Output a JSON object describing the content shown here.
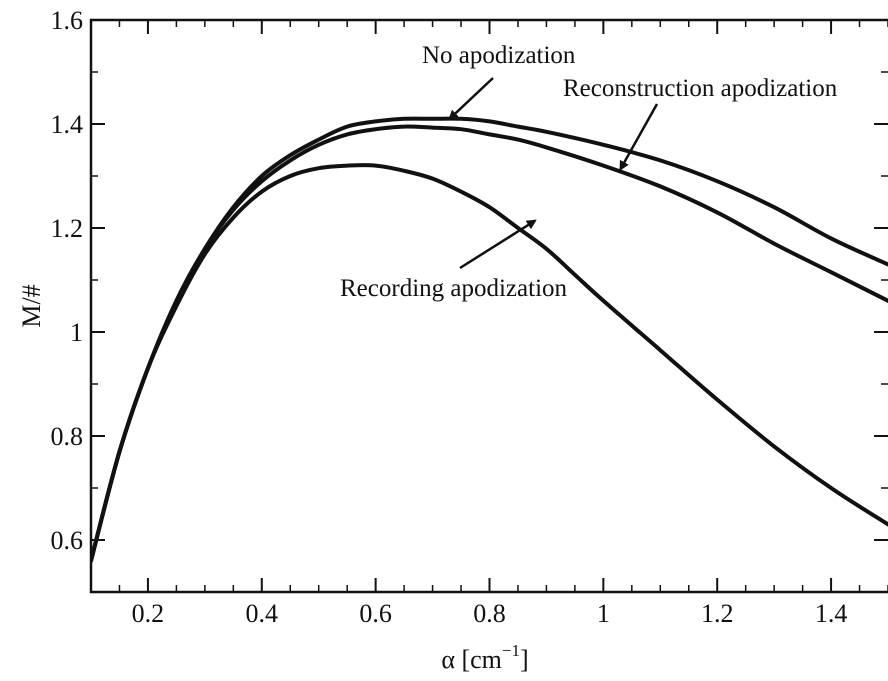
{
  "chart_data": {
    "type": "line",
    "title": "",
    "xlabel": "α [cm",
    "xlabel_sup": "−1",
    "xlabel_close": "]",
    "ylabel": "M/#",
    "xlim": [
      0.1,
      1.5
    ],
    "ylim": [
      0.5,
      1.6
    ],
    "x_ticks": [
      0.2,
      0.4,
      0.6,
      0.8,
      1.0,
      1.2,
      1.4
    ],
    "x_tick_labels": [
      "0.2",
      "0.4",
      "0.6",
      "0.8",
      "1",
      "1.2",
      "1.4"
    ],
    "y_ticks": [
      0.6,
      0.8,
      1.0,
      1.2,
      1.4,
      1.6
    ],
    "y_tick_labels": [
      "0.6",
      "0.8",
      "1",
      "1.2",
      "1.4",
      "1.6"
    ],
    "grid": false,
    "legend": "none",
    "series": [
      {
        "name": "No apodization",
        "x": [
          0.1,
          0.15,
          0.2,
          0.25,
          0.3,
          0.35,
          0.4,
          0.45,
          0.5,
          0.55,
          0.6,
          0.65,
          0.7,
          0.75,
          0.8,
          0.85,
          0.9,
          1.0,
          1.1,
          1.2,
          1.3,
          1.4,
          1.5
        ],
        "y": [
          0.56,
          0.77,
          0.93,
          1.06,
          1.16,
          1.24,
          1.3,
          1.34,
          1.37,
          1.395,
          1.405,
          1.41,
          1.41,
          1.41,
          1.405,
          1.395,
          1.385,
          1.36,
          1.33,
          1.29,
          1.24,
          1.18,
          1.13
        ]
      },
      {
        "name": "Reconstruction apodization",
        "x": [
          0.1,
          0.15,
          0.2,
          0.25,
          0.3,
          0.35,
          0.4,
          0.45,
          0.5,
          0.55,
          0.6,
          0.65,
          0.7,
          0.75,
          0.8,
          0.85,
          0.9,
          1.0,
          1.1,
          1.2,
          1.3,
          1.4,
          1.5
        ],
        "y": [
          0.56,
          0.77,
          0.93,
          1.06,
          1.16,
          1.235,
          1.29,
          1.33,
          1.36,
          1.38,
          1.39,
          1.395,
          1.393,
          1.39,
          1.38,
          1.37,
          1.355,
          1.32,
          1.28,
          1.23,
          1.17,
          1.115,
          1.06
        ]
      },
      {
        "name": "Recording apodization",
        "x": [
          0.1,
          0.15,
          0.2,
          0.25,
          0.3,
          0.35,
          0.4,
          0.45,
          0.5,
          0.55,
          0.6,
          0.65,
          0.7,
          0.75,
          0.8,
          0.85,
          0.9,
          0.95,
          1.0,
          1.1,
          1.2,
          1.3,
          1.4,
          1.5
        ],
        "y": [
          0.56,
          0.77,
          0.93,
          1.05,
          1.15,
          1.22,
          1.27,
          1.3,
          1.315,
          1.32,
          1.32,
          1.31,
          1.295,
          1.27,
          1.24,
          1.2,
          1.16,
          1.11,
          1.06,
          0.965,
          0.87,
          0.78,
          0.7,
          0.63
        ]
      }
    ],
    "annotations": [
      {
        "text": "No apodization",
        "points_to_x": 0.73,
        "points_to_y": 1.41
      },
      {
        "text": "Reconstruction apodization",
        "points_to_x": 1.03,
        "points_to_y": 1.313
      },
      {
        "text": "Recording apodization",
        "points_to_x": 0.88,
        "points_to_y": 1.214
      }
    ]
  }
}
